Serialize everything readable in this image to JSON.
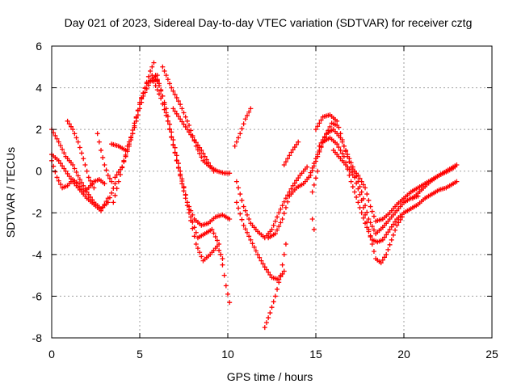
{
  "chart_data": {
    "type": "scatter",
    "title": "Day 021 of 2023, Sidereal Day-to-day VTEC variation (SDTVAR) for receiver cztg",
    "xlabel": "GPS time / hours",
    "ylabel": "SDTVAR / TECUs",
    "xlim": [
      0,
      25
    ],
    "ylim": [
      -8,
      6
    ],
    "xticks": [
      0,
      5,
      10,
      15,
      20,
      25
    ],
    "yticks": [
      -8,
      -6,
      -4,
      -2,
      0,
      2,
      4,
      6
    ],
    "grid": true,
    "marker": "+",
    "color": "#ff0000",
    "series": [
      {
        "x": [
          0.0,
          0.4,
          0.8,
          1.2,
          1.6,
          2.0,
          2.4,
          2.8,
          3.2,
          3.6
        ],
        "y": [
          2.0,
          1.4,
          0.7,
          0.3,
          -0.4,
          -1.0,
          -1.5,
          -1.8,
          -1.5,
          -0.6
        ]
      },
      {
        "x": [
          0.0,
          0.4,
          0.8,
          1.2,
          1.6,
          2.0,
          2.4,
          2.8,
          3.2
        ],
        "y": [
          0.8,
          0.5,
          0.0,
          -0.5,
          -0.9,
          -1.3,
          -1.6,
          -1.9,
          -1.3
        ]
      },
      {
        "x": [
          0.0,
          0.3,
          0.6,
          0.9,
          1.2,
          1.5,
          1.8,
          2.1,
          2.4,
          2.7,
          3.0
        ],
        "y": [
          0.5,
          -0.3,
          -0.8,
          -0.7,
          -0.4,
          -0.6,
          -1.0,
          -0.8,
          -0.5,
          -0.4,
          -0.6
        ]
      },
      {
        "x": [
          0.9,
          1.2,
          1.5,
          1.8,
          2.1,
          2.4
        ],
        "y": [
          2.4,
          2.0,
          1.4,
          0.6,
          -0.3,
          -0.8
        ]
      },
      {
        "x": [
          2.6,
          2.8,
          3.0,
          3.2,
          3.4
        ],
        "y": [
          1.8,
          1.0,
          0.3,
          -0.2,
          -0.5
        ]
      },
      {
        "x": [
          3.5,
          3.8,
          4.1,
          4.4,
          4.7,
          5.0,
          5.3,
          5.6,
          5.8
        ],
        "y": [
          -1.5,
          -0.5,
          0.5,
          1.3,
          2.3,
          3.2,
          4.0,
          4.8,
          5.2
        ]
      },
      {
        "x": [
          3.4,
          3.8,
          4.2,
          4.6,
          5.0,
          5.4,
          5.8,
          6.0
        ],
        "y": [
          1.3,
          1.2,
          1.0,
          1.8,
          3.3,
          4.2,
          4.5,
          4.6
        ]
      },
      {
        "x": [
          3.6,
          4.0,
          4.4,
          4.8,
          5.2,
          5.6,
          6.0
        ],
        "y": [
          -0.3,
          0.2,
          1.2,
          2.4,
          3.6,
          4.3,
          4.4
        ]
      },
      {
        "x": [
          5.9,
          6.3,
          6.7,
          7.1,
          7.5,
          7.9,
          8.3,
          8.7,
          9.1,
          9.5,
          9.9,
          10.1
        ],
        "y": [
          4.6,
          3.6,
          2.0,
          0.5,
          -0.8,
          -2.2,
          -3.2,
          -3.0,
          -2.8,
          -3.5,
          -5.5,
          -6.3
        ]
      },
      {
        "x": [
          5.8,
          6.2,
          6.6,
          7.0,
          7.4,
          7.8,
          8.2,
          8.6,
          9.0,
          9.4,
          9.7
        ],
        "y": [
          4.3,
          3.5,
          2.4,
          0.9,
          -0.6,
          -2.0,
          -3.5,
          -4.3,
          -4.0,
          -3.6,
          -4.2
        ]
      },
      {
        "x": [
          5.7,
          6.1,
          6.5,
          6.9,
          7.3,
          7.7,
          8.1,
          8.5,
          8.9,
          9.3,
          9.7,
          10.1
        ],
        "y": [
          4.6,
          4.2,
          3.0,
          1.5,
          0.0,
          -1.5,
          -2.3,
          -2.6,
          -2.5,
          -2.2,
          -2.1,
          -2.3
        ]
      },
      {
        "x": [
          6.3,
          6.8,
          7.3,
          7.8,
          8.2,
          8.6,
          9.0,
          9.4,
          9.8,
          10.1
        ],
        "y": [
          5.0,
          4.0,
          3.2,
          2.2,
          1.2,
          0.5,
          0.2,
          0.0,
          -0.1,
          -0.1
        ]
      },
      {
        "x": [
          6.9,
          7.3,
          7.7,
          8.1,
          8.5,
          8.9,
          9.2
        ],
        "y": [
          3.0,
          2.5,
          2.0,
          1.5,
          1.0,
          0.4,
          0.0
        ]
      },
      {
        "x": [
          10.4,
          10.7,
          11.0,
          11.3
        ],
        "y": [
          1.2,
          1.8,
          2.5,
          3.0
        ]
      },
      {
        "x": [
          10.5,
          10.9,
          11.3,
          11.7,
          12.1,
          12.5,
          12.9,
          13.3,
          13.7,
          14.1,
          14.5
        ],
        "y": [
          -0.5,
          -1.7,
          -2.5,
          -2.9,
          -3.2,
          -2.8,
          -2.0,
          -1.3,
          -0.7,
          -0.2,
          0.2
        ]
      },
      {
        "x": [
          10.5,
          10.9,
          11.3,
          11.7,
          12.1,
          12.5,
          12.9,
          13.2
        ],
        "y": [
          -1.5,
          -2.6,
          -3.3,
          -4.0,
          -4.6,
          -5.1,
          -5.2,
          -4.8
        ]
      },
      {
        "x": [
          12.1,
          12.4,
          12.7,
          13.0,
          13.3
        ],
        "y": [
          -7.5,
          -6.8,
          -6.0,
          -5.0,
          -3.5
        ]
      },
      {
        "x": [
          12.3,
          12.7,
          13.1,
          13.5,
          13.9,
          14.3,
          14.7,
          15.1,
          15.5,
          15.9,
          16.2
        ],
        "y": [
          -3.2,
          -3.0,
          -2.3,
          -1.2,
          -0.8,
          -0.6,
          -0.2,
          0.7,
          1.6,
          2.3,
          2.2
        ]
      },
      {
        "x": [
          13.2,
          13.6,
          14.0
        ],
        "y": [
          0.3,
          0.9,
          1.4
        ]
      },
      {
        "x": [
          14.6,
          15.0,
          15.4,
          15.8,
          16.2,
          16.6,
          17.0,
          17.4,
          17.8,
          18.2,
          18.5,
          18.8,
          19.2,
          19.6,
          20.0,
          20.4,
          20.8,
          21.2,
          21.6,
          22.0,
          22.4,
          22.8,
          23.0
        ],
        "y": [
          -0.3,
          0.6,
          1.4,
          1.6,
          1.3,
          0.7,
          -0.5,
          -1.5,
          -2.5,
          -3.3,
          -3.4,
          -3.3,
          -2.8,
          -2.3,
          -2.0,
          -1.8,
          -1.6,
          -1.3,
          -1.1,
          -0.9,
          -0.8,
          -0.6,
          -0.5
        ]
      },
      {
        "x": [
          15.0,
          15.4,
          15.8,
          16.2,
          16.6,
          17.0,
          17.4,
          17.8,
          18.1,
          18.4,
          18.8,
          19.2,
          19.6,
          20.0,
          20.4,
          20.8,
          21.2,
          21.6,
          22.0,
          22.4,
          22.8,
          23.0
        ],
        "y": [
          2.0,
          2.6,
          2.7,
          2.4,
          1.2,
          0.2,
          -0.2,
          -0.8,
          -1.7,
          -2.4,
          -2.3,
          -2.0,
          -1.6,
          -1.3,
          -1.0,
          -0.8,
          -0.6,
          -0.4,
          -0.2,
          0.0,
          0.2,
          0.3
        ]
      },
      {
        "x": [
          15.2,
          15.6,
          16.0,
          16.4,
          16.8,
          17.2,
          17.6,
          18.0,
          18.4,
          18.8,
          19.2,
          19.6,
          20.0,
          20.4,
          20.8
        ],
        "y": [
          1.2,
          1.8,
          2.0,
          1.6,
          0.8,
          0.0,
          -1.0,
          -2.3,
          -3.0,
          -2.7,
          -2.3,
          -1.9,
          -1.5,
          -1.3,
          -1.2
        ]
      },
      {
        "x": [
          16.0,
          16.4,
          16.8,
          17.2,
          17.6,
          18.0,
          18.4,
          18.7,
          19.0,
          19.3,
          19.6,
          19.9
        ],
        "y": [
          1.0,
          0.6,
          0.2,
          -0.3,
          -1.4,
          -2.8,
          -4.2,
          -4.4,
          -4.0,
          -3.3,
          -2.6,
          -2.2
        ]
      },
      {
        "x": [
          20.5,
          21.0,
          21.5,
          22.0,
          22.5,
          22.9
        ],
        "y": [
          -1.3,
          -0.9,
          -0.5,
          -0.2,
          0.0,
          0.2
        ]
      },
      {
        "x": [
          14.8,
          15.1
        ],
        "y": [
          -1.0,
          0.0
        ]
      },
      {
        "x": [
          14.8,
          14.9
        ],
        "y": [
          -2.3,
          -2.8
        ]
      }
    ]
  }
}
